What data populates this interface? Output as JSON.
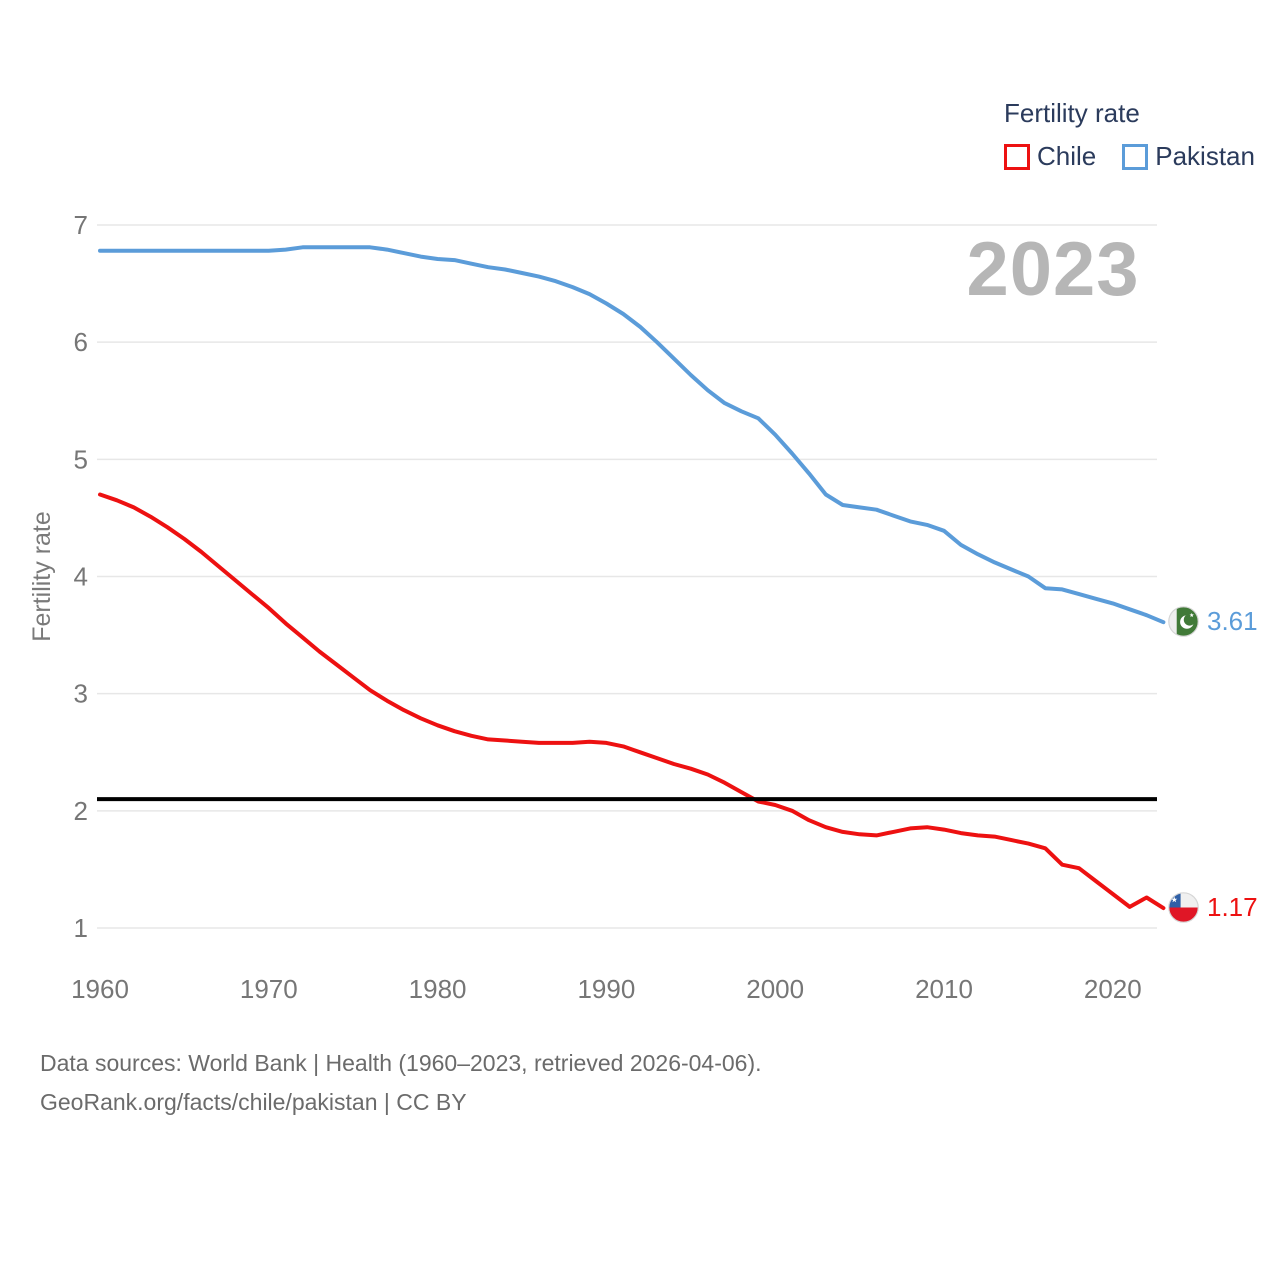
{
  "legend": {
    "title": "Fertility rate",
    "items": [
      {
        "label": "Chile",
        "color": "#ed1111"
      },
      {
        "label": "Pakistan",
        "color": "#5b9cd9"
      }
    ]
  },
  "watermark": {
    "year": "2023"
  },
  "end_labels": {
    "pakistan": {
      "value": "3.61",
      "icon": "pakistan-flag-icon"
    },
    "chile": {
      "value": "1.17",
      "icon": "chile-flag-icon"
    }
  },
  "footer": {
    "line1": "Data sources: World Bank | Health (1960–2023, retrieved 2026-04-06).",
    "line2": "GeoRank.org/facts/chile/pakistan | CC BY"
  },
  "chart_data": {
    "type": "line",
    "title": "",
    "xlabel": "",
    "ylabel": "Fertility rate",
    "grid": true,
    "legend_position": "top-right",
    "xlim": [
      1960,
      2023
    ],
    "ylim": [
      1,
      7
    ],
    "x_ticks": [
      1960,
      1970,
      1980,
      1990,
      2000,
      2010,
      2020
    ],
    "y_ticks": [
      1,
      2,
      3,
      4,
      5,
      6,
      7
    ],
    "reference_line": {
      "value": 2.1,
      "color": "#000000"
    },
    "x": [
      1960,
      1961,
      1962,
      1963,
      1964,
      1965,
      1966,
      1967,
      1968,
      1969,
      1970,
      1971,
      1972,
      1973,
      1974,
      1975,
      1976,
      1977,
      1978,
      1979,
      1980,
      1981,
      1982,
      1983,
      1984,
      1985,
      1986,
      1987,
      1988,
      1989,
      1990,
      1991,
      1992,
      1993,
      1994,
      1995,
      1996,
      1997,
      1998,
      1999,
      2000,
      2001,
      2002,
      2003,
      2004,
      2005,
      2006,
      2007,
      2008,
      2009,
      2010,
      2011,
      2012,
      2013,
      2014,
      2015,
      2016,
      2017,
      2018,
      2019,
      2020,
      2021,
      2022,
      2023
    ],
    "series": [
      {
        "name": "Chile",
        "color": "#ed1111",
        "last_value": 1.17,
        "values": [
          4.7,
          4.65,
          4.59,
          4.51,
          4.42,
          4.32,
          4.21,
          4.09,
          3.97,
          3.85,
          3.73,
          3.6,
          3.48,
          3.36,
          3.25,
          3.14,
          3.03,
          2.94,
          2.86,
          2.79,
          2.73,
          2.68,
          2.64,
          2.61,
          2.6,
          2.59,
          2.58,
          2.58,
          2.58,
          2.59,
          2.58,
          2.55,
          2.5,
          2.45,
          2.4,
          2.36,
          2.31,
          2.24,
          2.16,
          2.08,
          2.05,
          2.0,
          1.92,
          1.86,
          1.82,
          1.8,
          1.79,
          1.82,
          1.85,
          1.86,
          1.84,
          1.81,
          1.79,
          1.78,
          1.75,
          1.72,
          1.68,
          1.54,
          1.51,
          1.4,
          1.29,
          1.18,
          1.26,
          1.17
        ]
      },
      {
        "name": "Pakistan",
        "color": "#5b9cd9",
        "last_value": 3.61,
        "values": [
          6.78,
          6.78,
          6.78,
          6.78,
          6.78,
          6.78,
          6.78,
          6.78,
          6.78,
          6.78,
          6.78,
          6.79,
          6.81,
          6.81,
          6.81,
          6.81,
          6.81,
          6.79,
          6.76,
          6.73,
          6.71,
          6.7,
          6.67,
          6.64,
          6.62,
          6.59,
          6.56,
          6.52,
          6.47,
          6.41,
          6.33,
          6.24,
          6.13,
          6.0,
          5.86,
          5.72,
          5.59,
          5.48,
          5.41,
          5.35,
          5.21,
          5.05,
          4.88,
          4.7,
          4.61,
          4.59,
          4.57,
          4.52,
          4.47,
          4.44,
          4.39,
          4.27,
          4.19,
          4.12,
          4.06,
          4.0,
          3.9,
          3.89,
          3.85,
          3.81,
          3.77,
          3.72,
          3.67,
          3.61
        ]
      }
    ]
  }
}
